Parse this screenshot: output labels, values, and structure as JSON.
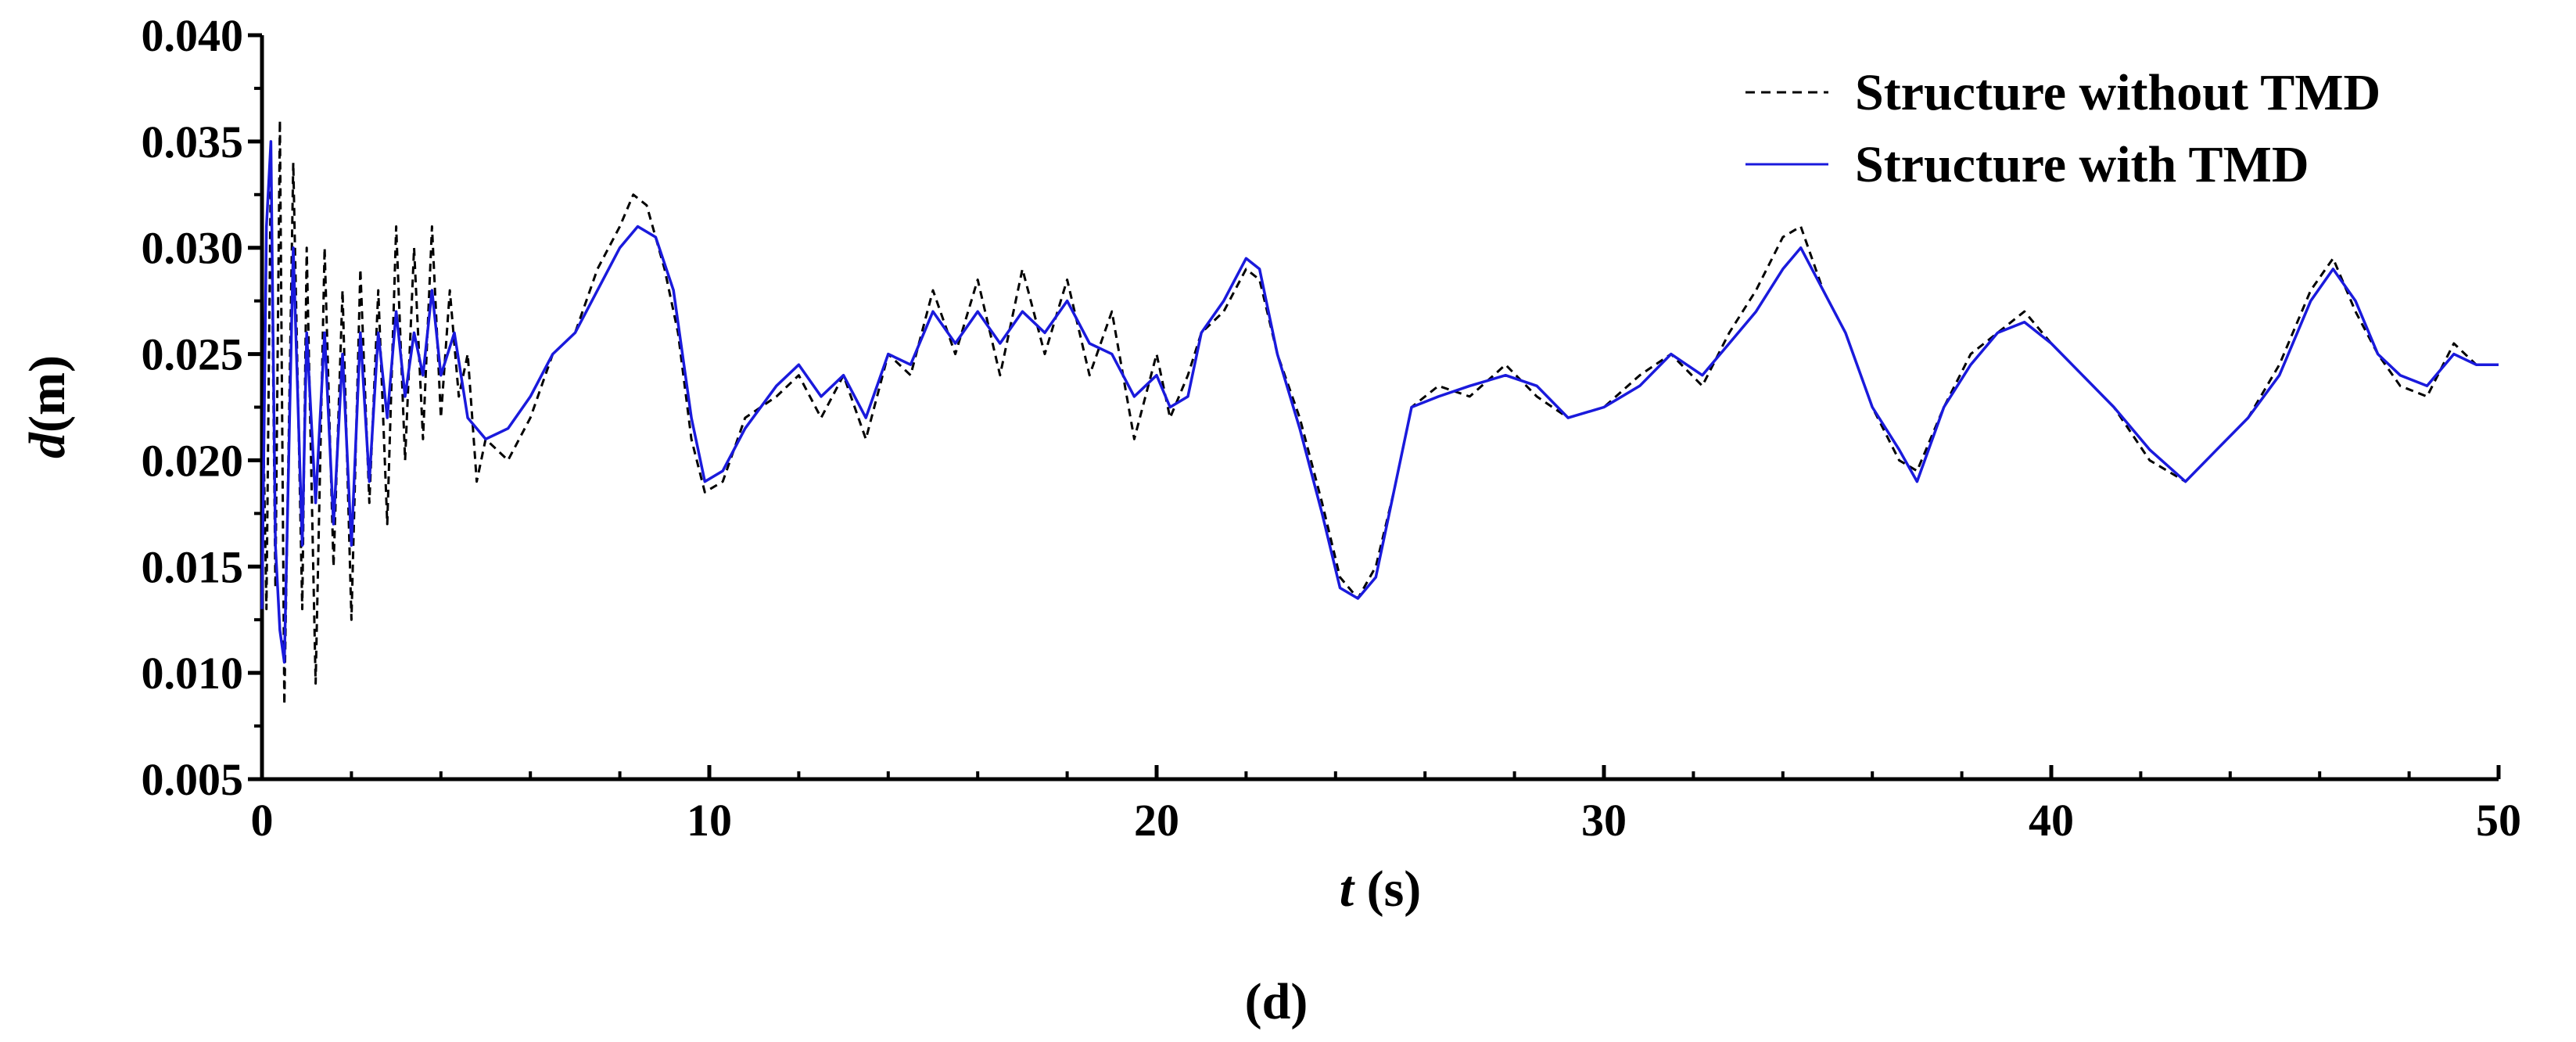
{
  "chart_data": {
    "type": "line",
    "panel_label_paren_open": "(",
    "panel_label_letter": "d",
    "panel_label_paren_close": ")",
    "xlabel_var": "t",
    "xlabel_unit": " (s)",
    "ylabel_var": "d",
    "ylabel_unit": "(m)",
    "xlim": [
      0,
      50
    ],
    "ylim": [
      0.005,
      0.04
    ],
    "xticks": [
      "0",
      "10",
      "20",
      "30",
      "40",
      "50"
    ],
    "yticks": [
      "0.005",
      "0.010",
      "0.015",
      "0.020",
      "0.025",
      "0.030",
      "0.035",
      "0.040"
    ],
    "grid": false,
    "legend_position": "top-right",
    "series": [
      {
        "name": "Structure without TMD",
        "color": "#000000",
        "style": "dashed",
        "points": [
          [
            0,
            0.025
          ],
          [
            0.1,
            0.013
          ],
          [
            0.2,
            0.034
          ],
          [
            0.3,
            0.014
          ],
          [
            0.4,
            0.036
          ],
          [
            0.5,
            0.0085
          ],
          [
            0.7,
            0.034
          ],
          [
            0.9,
            0.013
          ],
          [
            1.0,
            0.03
          ],
          [
            1.2,
            0.0095
          ],
          [
            1.4,
            0.03
          ],
          [
            1.6,
            0.015
          ],
          [
            1.8,
            0.028
          ],
          [
            2.0,
            0.0125
          ],
          [
            2.2,
            0.029
          ],
          [
            2.4,
            0.018
          ],
          [
            2.6,
            0.028
          ],
          [
            2.8,
            0.017
          ],
          [
            3.0,
            0.031
          ],
          [
            3.2,
            0.02
          ],
          [
            3.4,
            0.03
          ],
          [
            3.6,
            0.021
          ],
          [
            3.8,
            0.031
          ],
          [
            4.0,
            0.022
          ],
          [
            4.2,
            0.028
          ],
          [
            4.4,
            0.023
          ],
          [
            4.6,
            0.025
          ],
          [
            4.8,
            0.019
          ],
          [
            5.0,
            0.021
          ],
          [
            5.5,
            0.02
          ],
          [
            6.0,
            0.022
          ],
          [
            6.5,
            0.025
          ],
          [
            7.0,
            0.026
          ],
          [
            7.5,
            0.029
          ],
          [
            8.0,
            0.031
          ],
          [
            8.3,
            0.0325
          ],
          [
            8.6,
            0.032
          ],
          [
            9.0,
            0.029
          ],
          [
            9.3,
            0.026
          ],
          [
            9.6,
            0.021
          ],
          [
            9.9,
            0.0185
          ],
          [
            10.3,
            0.019
          ],
          [
            10.8,
            0.022
          ],
          [
            11.5,
            0.023
          ],
          [
            12.0,
            0.024
          ],
          [
            12.5,
            0.022
          ],
          [
            13.0,
            0.024
          ],
          [
            13.5,
            0.021
          ],
          [
            14.0,
            0.025
          ],
          [
            14.5,
            0.024
          ],
          [
            15.0,
            0.028
          ],
          [
            15.5,
            0.025
          ],
          [
            16.0,
            0.0285
          ],
          [
            16.5,
            0.024
          ],
          [
            17.0,
            0.029
          ],
          [
            17.5,
            0.025
          ],
          [
            18.0,
            0.0285
          ],
          [
            18.5,
            0.024
          ],
          [
            19.0,
            0.027
          ],
          [
            19.5,
            0.021
          ],
          [
            20.0,
            0.025
          ],
          [
            20.3,
            0.022
          ],
          [
            20.7,
            0.024
          ],
          [
            21.0,
            0.026
          ],
          [
            21.5,
            0.027
          ],
          [
            22.0,
            0.029
          ],
          [
            22.3,
            0.0285
          ],
          [
            22.7,
            0.025
          ],
          [
            23.2,
            0.022
          ],
          [
            23.7,
            0.018
          ],
          [
            24.1,
            0.0145
          ],
          [
            24.5,
            0.0135
          ],
          [
            24.9,
            0.015
          ],
          [
            25.3,
            0.0185
          ],
          [
            25.7,
            0.0225
          ],
          [
            26.3,
            0.0235
          ],
          [
            27.0,
            0.023
          ],
          [
            27.8,
            0.0245
          ],
          [
            28.5,
            0.023
          ],
          [
            29.2,
            0.022
          ],
          [
            30.0,
            0.0225
          ],
          [
            30.8,
            0.024
          ],
          [
            31.5,
            0.025
          ],
          [
            32.2,
            0.0235
          ],
          [
            32.8,
            0.026
          ],
          [
            33.4,
            0.028
          ],
          [
            34.0,
            0.0305
          ],
          [
            34.4,
            0.031
          ],
          [
            34.9,
            0.028
          ],
          [
            35.4,
            0.026
          ],
          [
            36.0,
            0.0225
          ],
          [
            36.6,
            0.02
          ],
          [
            37.0,
            0.0195
          ],
          [
            37.6,
            0.0225
          ],
          [
            38.2,
            0.025
          ],
          [
            38.8,
            0.026
          ],
          [
            39.4,
            0.027
          ],
          [
            40.0,
            0.0255
          ],
          [
            40.7,
            0.024
          ],
          [
            41.4,
            0.0225
          ],
          [
            42.2,
            0.02
          ],
          [
            43.0,
            0.019
          ],
          [
            43.7,
            0.0205
          ],
          [
            44.4,
            0.022
          ],
          [
            45.1,
            0.0245
          ],
          [
            45.8,
            0.028
          ],
          [
            46.3,
            0.0295
          ],
          [
            46.8,
            0.027
          ],
          [
            47.3,
            0.025
          ],
          [
            47.8,
            0.0235
          ],
          [
            48.4,
            0.023
          ],
          [
            49.0,
            0.0255
          ],
          [
            49.5,
            0.0245
          ],
          [
            50.0,
            0.0245
          ]
        ]
      },
      {
        "name": "Structure with TMD",
        "color": "#1a1adc",
        "style": "solid",
        "points": [
          [
            0,
            0.013
          ],
          [
            0.1,
            0.031
          ],
          [
            0.2,
            0.035
          ],
          [
            0.3,
            0.016
          ],
          [
            0.4,
            0.012
          ],
          [
            0.5,
            0.0105
          ],
          [
            0.7,
            0.03
          ],
          [
            0.9,
            0.016
          ],
          [
            1.0,
            0.026
          ],
          [
            1.2,
            0.018
          ],
          [
            1.4,
            0.026
          ],
          [
            1.6,
            0.017
          ],
          [
            1.8,
            0.025
          ],
          [
            2.0,
            0.016
          ],
          [
            2.2,
            0.026
          ],
          [
            2.4,
            0.019
          ],
          [
            2.6,
            0.026
          ],
          [
            2.8,
            0.022
          ],
          [
            3.0,
            0.027
          ],
          [
            3.2,
            0.023
          ],
          [
            3.4,
            0.026
          ],
          [
            3.6,
            0.024
          ],
          [
            3.8,
            0.028
          ],
          [
            4.0,
            0.024
          ],
          [
            4.3,
            0.026
          ],
          [
            4.6,
            0.022
          ],
          [
            5.0,
            0.021
          ],
          [
            5.5,
            0.0215
          ],
          [
            6.0,
            0.023
          ],
          [
            6.5,
            0.025
          ],
          [
            7.0,
            0.026
          ],
          [
            7.5,
            0.028
          ],
          [
            8.0,
            0.03
          ],
          [
            8.4,
            0.031
          ],
          [
            8.8,
            0.0305
          ],
          [
            9.2,
            0.028
          ],
          [
            9.6,
            0.022
          ],
          [
            9.9,
            0.019
          ],
          [
            10.3,
            0.0195
          ],
          [
            10.8,
            0.0215
          ],
          [
            11.5,
            0.0235
          ],
          [
            12.0,
            0.0245
          ],
          [
            12.5,
            0.023
          ],
          [
            13.0,
            0.024
          ],
          [
            13.5,
            0.022
          ],
          [
            14.0,
            0.025
          ],
          [
            14.5,
            0.0245
          ],
          [
            15.0,
            0.027
          ],
          [
            15.5,
            0.0255
          ],
          [
            16.0,
            0.027
          ],
          [
            16.5,
            0.0255
          ],
          [
            17.0,
            0.027
          ],
          [
            17.5,
            0.026
          ],
          [
            18.0,
            0.0275
          ],
          [
            18.5,
            0.0255
          ],
          [
            19.0,
            0.025
          ],
          [
            19.5,
            0.023
          ],
          [
            20.0,
            0.024
          ],
          [
            20.3,
            0.0225
          ],
          [
            20.7,
            0.023
          ],
          [
            21.0,
            0.026
          ],
          [
            21.5,
            0.0275
          ],
          [
            22.0,
            0.0295
          ],
          [
            22.3,
            0.029
          ],
          [
            22.7,
            0.025
          ],
          [
            23.2,
            0.0215
          ],
          [
            23.7,
            0.0175
          ],
          [
            24.1,
            0.014
          ],
          [
            24.5,
            0.0135
          ],
          [
            24.9,
            0.0145
          ],
          [
            25.3,
            0.0185
          ],
          [
            25.7,
            0.0225
          ],
          [
            26.3,
            0.023
          ],
          [
            27.0,
            0.0235
          ],
          [
            27.8,
            0.024
          ],
          [
            28.5,
            0.0235
          ],
          [
            29.2,
            0.022
          ],
          [
            30.0,
            0.0225
          ],
          [
            30.8,
            0.0235
          ],
          [
            31.5,
            0.025
          ],
          [
            32.2,
            0.024
          ],
          [
            32.8,
            0.0255
          ],
          [
            33.4,
            0.027
          ],
          [
            34.0,
            0.029
          ],
          [
            34.4,
            0.03
          ],
          [
            34.9,
            0.028
          ],
          [
            35.4,
            0.026
          ],
          [
            36.0,
            0.0225
          ],
          [
            36.6,
            0.0205
          ],
          [
            37.0,
            0.019
          ],
          [
            37.6,
            0.0225
          ],
          [
            38.2,
            0.0245
          ],
          [
            38.8,
            0.026
          ],
          [
            39.4,
            0.0265
          ],
          [
            40.0,
            0.0255
          ],
          [
            40.7,
            0.024
          ],
          [
            41.4,
            0.0225
          ],
          [
            42.2,
            0.0205
          ],
          [
            43.0,
            0.019
          ],
          [
            43.7,
            0.0205
          ],
          [
            44.4,
            0.022
          ],
          [
            45.1,
            0.024
          ],
          [
            45.8,
            0.0275
          ],
          [
            46.3,
            0.029
          ],
          [
            46.8,
            0.0275
          ],
          [
            47.3,
            0.025
          ],
          [
            47.8,
            0.024
          ],
          [
            48.4,
            0.0235
          ],
          [
            49.0,
            0.025
          ],
          [
            49.5,
            0.0245
          ],
          [
            50.0,
            0.0245
          ]
        ]
      }
    ]
  }
}
